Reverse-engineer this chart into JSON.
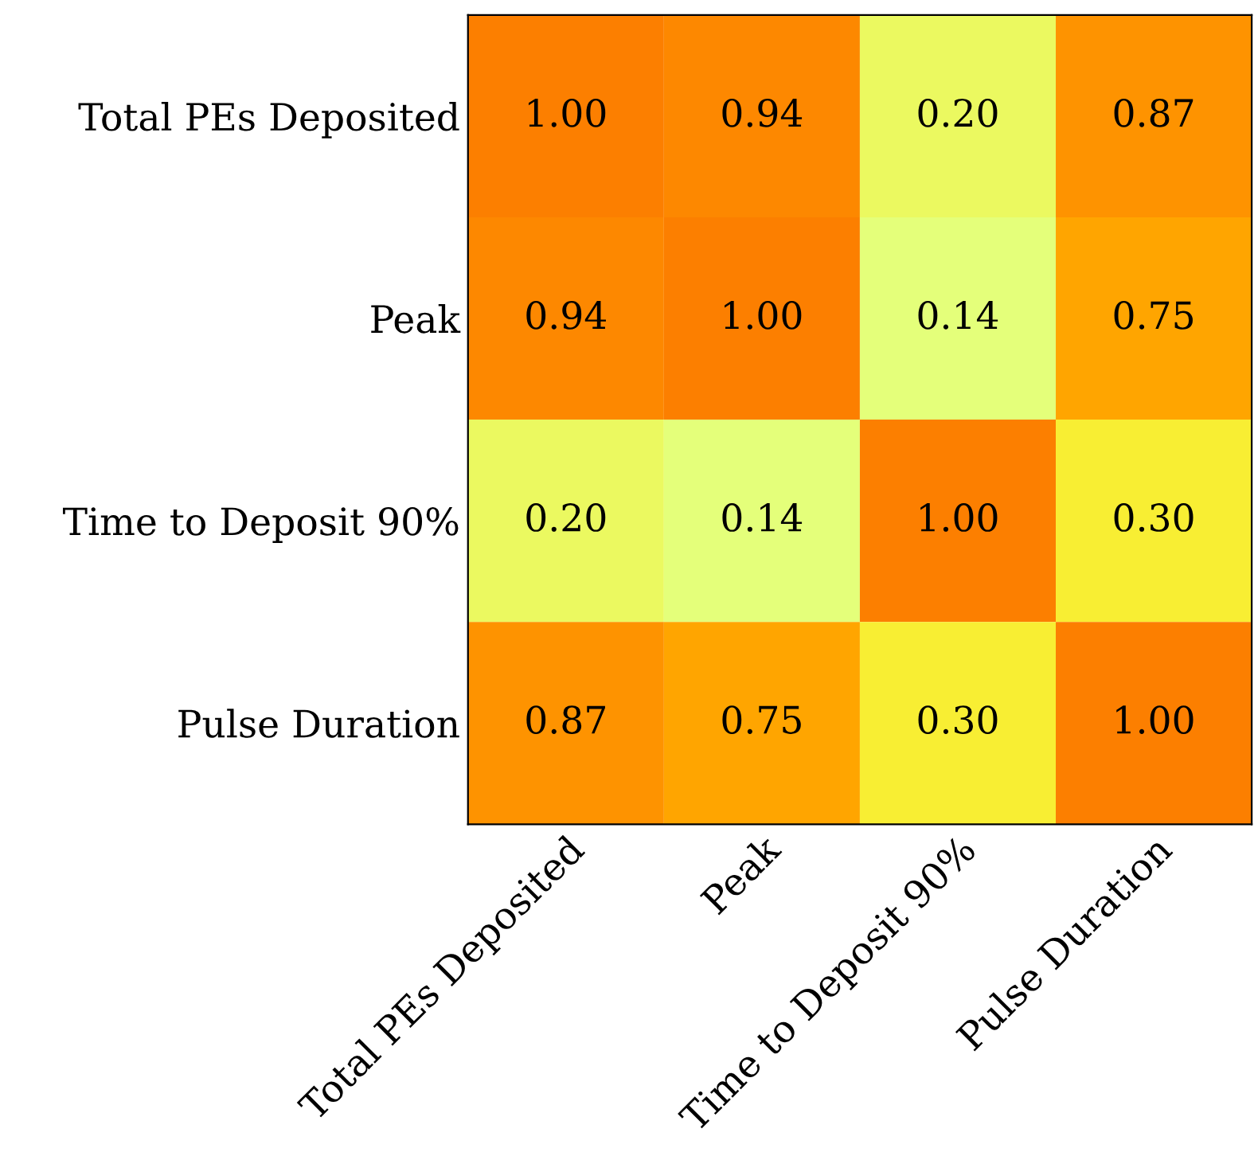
{
  "chart_data": {
    "type": "heatmap",
    "categories": [
      "Total PEs Deposited",
      "Peak",
      "Time to Deposit 90%",
      "Pulse Duration"
    ],
    "y_categories": [
      "Total PEs Deposited",
      "Peak",
      "Time to Deposit 90%",
      "Pulse Duration"
    ],
    "cells": [
      [
        1.0,
        0.94,
        0.2,
        0.87
      ],
      [
        0.94,
        1.0,
        0.14,
        0.75
      ],
      [
        0.2,
        0.14,
        1.0,
        0.3
      ],
      [
        0.87,
        0.75,
        0.3,
        1.0
      ]
    ],
    "cell_labels": [
      [
        "1.00",
        "0.94",
        "0.20",
        "0.87"
      ],
      [
        "0.94",
        "1.00",
        "0.14",
        "0.75"
      ],
      [
        "0.20",
        "0.14",
        "1.00",
        "0.30"
      ],
      [
        "0.87",
        "0.75",
        "0.30",
        "1.00"
      ]
    ],
    "data_labels": true
  }
}
